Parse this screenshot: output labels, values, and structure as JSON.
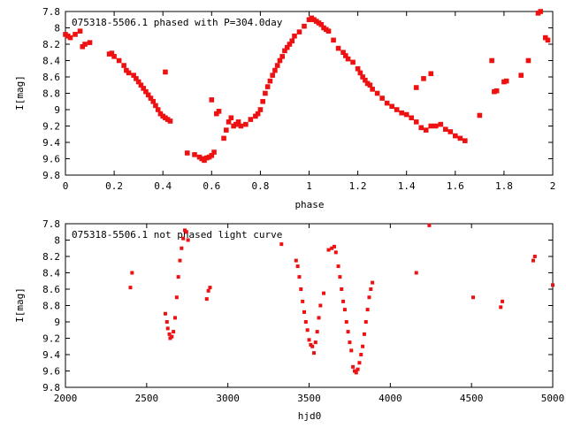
{
  "chart_data": [
    {
      "type": "scatter",
      "title": "075318-5506.1 phased with P=304.0day",
      "xlabel": "phase",
      "ylabel": "I[mag]",
      "xlim": [
        0,
        2
      ],
      "ylim": [
        9.8,
        7.8
      ],
      "y_inverted": true,
      "grid": false,
      "marker_color": "#ee1111",
      "xticks": [
        "0",
        "0.2",
        "0.4",
        "0.6",
        "0.8",
        "1",
        "1.2",
        "1.4",
        "1.6",
        "1.8",
        "2"
      ],
      "yticks": [
        "7.8",
        "8",
        "8.2",
        "8.4",
        "8.6",
        "8.8",
        "9",
        "9.2",
        "9.4",
        "9.6",
        "9.8"
      ],
      "x": [
        0.0,
        0.01,
        0.02,
        0.04,
        0.06,
        0.07,
        0.08,
        0.1,
        0.18,
        0.19,
        0.2,
        0.22,
        0.24,
        0.25,
        0.26,
        0.28,
        0.29,
        0.3,
        0.31,
        0.32,
        0.33,
        0.34,
        0.35,
        0.36,
        0.37,
        0.38,
        0.39,
        0.4,
        0.41,
        0.42,
        0.43,
        0.41,
        0.5,
        0.53,
        0.55,
        0.56,
        0.57,
        0.58,
        0.59,
        0.6,
        0.61,
        0.6,
        0.62,
        0.63,
        0.65,
        0.66,
        0.67,
        0.68,
        0.69,
        0.7,
        0.71,
        0.72,
        0.74,
        0.76,
        0.78,
        0.79,
        0.8,
        0.81,
        0.82,
        0.83,
        0.84,
        0.85,
        0.86,
        0.87,
        0.88,
        0.89,
        0.9,
        0.91,
        0.92,
        0.93,
        0.94,
        0.96,
        0.98,
        1.0,
        1.01,
        1.02,
        1.03,
        1.04,
        1.05,
        1.06,
        1.07,
        1.08,
        1.1,
        1.12,
        1.14,
        1.15,
        1.16,
        1.18,
        1.2,
        1.21,
        1.22,
        1.23,
        1.24,
        1.25,
        1.26,
        1.28,
        1.3,
        1.32,
        1.34,
        1.36,
        1.38,
        1.4,
        1.42,
        1.44,
        1.46,
        1.48,
        1.5,
        1.44,
        1.47,
        1.5,
        1.52,
        1.54,
        1.56,
        1.58,
        1.6,
        1.62,
        1.64,
        1.7,
        1.75,
        1.76,
        1.77,
        1.8,
        1.81,
        1.87,
        1.9,
        1.94,
        1.95,
        1.97,
        1.98
      ],
      "y": [
        8.08,
        8.1,
        8.12,
        8.08,
        8.04,
        8.23,
        8.2,
        8.18,
        8.32,
        8.31,
        8.35,
        8.4,
        8.46,
        8.52,
        8.55,
        8.58,
        8.62,
        8.66,
        8.7,
        8.74,
        8.78,
        8.82,
        8.86,
        8.9,
        8.95,
        9.0,
        9.05,
        9.08,
        9.1,
        9.12,
        9.14,
        8.54,
        9.53,
        9.55,
        9.58,
        9.6,
        9.62,
        9.59,
        9.58,
        9.56,
        9.52,
        8.88,
        9.05,
        9.02,
        9.35,
        9.25,
        9.15,
        9.1,
        9.2,
        9.18,
        9.15,
        9.2,
        9.18,
        9.12,
        9.08,
        9.05,
        9.0,
        8.9,
        8.8,
        8.72,
        8.65,
        8.58,
        8.52,
        8.46,
        8.4,
        8.35,
        8.28,
        8.24,
        8.2,
        8.16,
        8.1,
        8.05,
        7.98,
        7.9,
        7.88,
        7.9,
        7.92,
        7.94,
        7.96,
        8.0,
        8.02,
        8.04,
        8.15,
        8.25,
        8.3,
        8.34,
        8.38,
        8.42,
        8.5,
        8.55,
        8.6,
        8.64,
        8.68,
        8.7,
        8.75,
        8.8,
        8.86,
        8.92,
        8.96,
        9.0,
        9.04,
        9.06,
        9.1,
        9.15,
        9.22,
        9.25,
        9.2,
        8.73,
        8.62,
        8.56,
        9.2,
        9.18,
        9.24,
        9.27,
        9.32,
        9.35,
        9.38,
        9.07,
        8.4,
        8.78,
        8.77,
        8.66,
        8.65,
        8.58,
        8.4,
        7.82,
        7.8,
        8.12,
        8.15
      ]
    },
    {
      "type": "scatter",
      "title": "075318-5506.1 not phased light curve",
      "xlabel": "hjd0",
      "ylabel": "I[mag]",
      "xlim": [
        2000,
        5000
      ],
      "ylim": [
        9.8,
        7.8
      ],
      "y_inverted": true,
      "grid": false,
      "marker_color": "#ee1111",
      "xticks": [
        "2000",
        "2500",
        "3000",
        "3500",
        "4000",
        "4500",
        "5000"
      ],
      "yticks": [
        "7.8",
        "8",
        "8.2",
        "8.4",
        "8.6",
        "8.8",
        "9",
        "9.2",
        "9.4",
        "9.6",
        "9.8"
      ],
      "x": [
        2400,
        2410,
        2615,
        2625,
        2630,
        2640,
        2645,
        2655,
        2665,
        2675,
        2685,
        2695,
        2705,
        2715,
        2725,
        2735,
        2745,
        2755,
        2870,
        2880,
        2890,
        3330,
        3420,
        3430,
        3440,
        3450,
        3460,
        3470,
        3480,
        3490,
        3500,
        3510,
        3520,
        3530,
        3540,
        3550,
        3560,
        3570,
        3590,
        3620,
        3640,
        3655,
        3665,
        3680,
        3690,
        3700,
        3710,
        3720,
        3730,
        3740,
        3750,
        3760,
        3770,
        3780,
        3790,
        3800,
        3810,
        3820,
        3830,
        3840,
        3850,
        3860,
        3870,
        3880,
        3890,
        4160,
        4240,
        4510,
        4680,
        4690,
        4880,
        4890,
        5000
      ],
      "y": [
        8.58,
        8.4,
        8.9,
        9.0,
        9.08,
        9.15,
        9.2,
        9.18,
        9.12,
        8.95,
        8.7,
        8.45,
        8.25,
        8.1,
        7.98,
        7.88,
        7.9,
        8.0,
        8.72,
        8.62,
        8.58,
        8.05,
        8.25,
        8.32,
        8.45,
        8.6,
        8.75,
        8.88,
        9.0,
        9.1,
        9.22,
        9.28,
        9.3,
        9.38,
        9.25,
        9.12,
        8.95,
        8.8,
        8.65,
        8.12,
        8.1,
        8.08,
        8.15,
        8.32,
        8.45,
        8.6,
        8.75,
        8.85,
        9.0,
        9.12,
        9.25,
        9.35,
        9.55,
        9.6,
        9.62,
        9.58,
        9.5,
        9.4,
        9.3,
        9.15,
        9.0,
        8.85,
        8.7,
        8.6,
        8.52,
        8.4,
        7.82,
        8.7,
        8.82,
        8.75,
        8.25,
        8.2,
        8.55
      ]
    }
  ]
}
